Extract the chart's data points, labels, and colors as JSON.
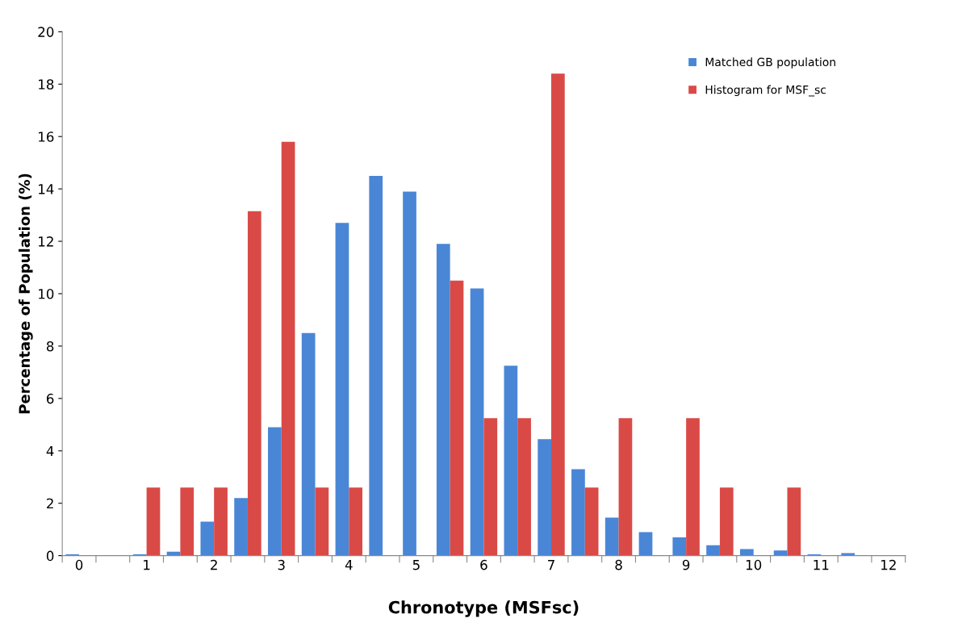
{
  "chart_data": {
    "type": "bar",
    "xlabel": "Chronotype (MSFsc)",
    "ylabel": "Percentage of Population (%)",
    "categories": [
      "0",
      null,
      "1",
      null,
      "2",
      null,
      "3",
      null,
      "4",
      null,
      "5",
      null,
      "6",
      null,
      "7",
      null,
      "8",
      null,
      "9",
      null,
      "10",
      null,
      "11",
      null,
      "12"
    ],
    "series": [
      {
        "name": "Matched GB population",
        "color": "#4a86d6",
        "values": [
          0.05,
          0,
          0.05,
          0.15,
          1.3,
          2.2,
          4.9,
          8.5,
          12.7,
          14.5,
          13.9,
          11.9,
          10.2,
          7.25,
          4.45,
          3.3,
          1.45,
          0.9,
          0.7,
          0.4,
          0.25,
          0.2,
          0.05,
          0.1,
          0
        ]
      },
      {
        "name": "Histogram for MSF_sc",
        "color": "#d94a47",
        "values": [
          0,
          0,
          2.6,
          2.6,
          2.6,
          13.15,
          15.8,
          2.6,
          2.6,
          0,
          0,
          10.5,
          5.25,
          5.25,
          18.4,
          2.6,
          5.25,
          0,
          5.25,
          2.6,
          0,
          2.6,
          0,
          0,
          0
        ]
      }
    ],
    "ylim": [
      0,
      20
    ],
    "yticks": [
      0,
      2,
      4,
      6,
      8,
      10,
      12,
      14,
      16,
      18,
      20
    ],
    "grid": false,
    "legend": "top right"
  }
}
